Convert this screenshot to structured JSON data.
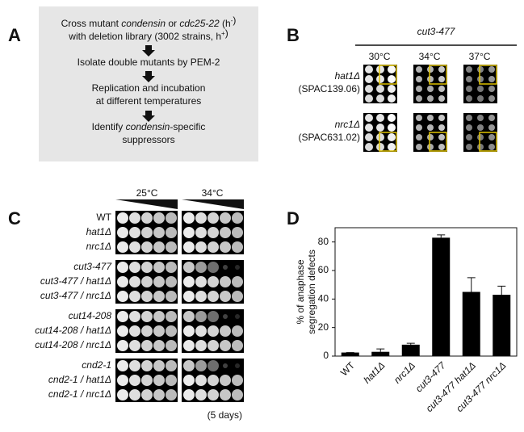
{
  "panel_labels": [
    "A",
    "B",
    "C",
    "D"
  ],
  "flowchart": {
    "lines": [
      [
        "Cross mutant ",
        {
          "italic": "condensin"
        },
        " or ",
        {
          "italic": "cdc25-22"
        },
        " (h",
        {
          "sup": "-"
        },
        ")"
      ],
      [
        "with deletion library (3002 strains, h",
        {
          "sup": "+"
        },
        ")"
      ],
      [
        "Isolate double mutants by PEM-2"
      ],
      [
        "Replication and incubation"
      ],
      [
        "at different temperatures"
      ],
      [
        "Identify ",
        {
          "italic": "condensin"
        },
        "-specific"
      ],
      [
        "suppressors"
      ]
    ]
  },
  "panel_b": {
    "strain": "cut3-477",
    "temperatures": [
      "30°C",
      "34°C",
      "37°C"
    ],
    "rows": [
      {
        "gene": "hat1Δ",
        "id": "(SPAC139.06)"
      },
      {
        "gene": "nrc1Δ",
        "id": "(SPAC631.02)"
      }
    ]
  },
  "panel_c": {
    "temperatures": [
      "25°C",
      "34°C"
    ],
    "strains": [
      "WT",
      "hat1Δ",
      "nrc1Δ",
      "cut3-477",
      "cut3-477 / hat1Δ",
      "cut3-477 / nrc1Δ",
      "cut14-208",
      "cut14-208 / hat1Δ",
      "cut14-208 / nrc1Δ",
      "cnd2-1",
      "cnd2-1 / hat1Δ",
      "cnd2-1 / nrc1Δ"
    ],
    "duration": "(5 days)"
  },
  "chart_data": {
    "type": "bar",
    "ylabel": "% of anaphase segregation defects",
    "categories": [
      "WT",
      "hat1Δ",
      "nrc1Δ",
      "cut3-477",
      "cut3-477 hat1Δ",
      "cut3-477 nrc1Δ"
    ],
    "values": [
      2.5,
      3,
      8,
      83,
      45,
      43
    ],
    "errors": [
      0,
      2,
      1,
      2,
      10,
      6
    ],
    "color": "#000000",
    "ylim": [
      0,
      90
    ],
    "yticks": [
      0,
      20,
      40,
      60,
      80
    ]
  }
}
